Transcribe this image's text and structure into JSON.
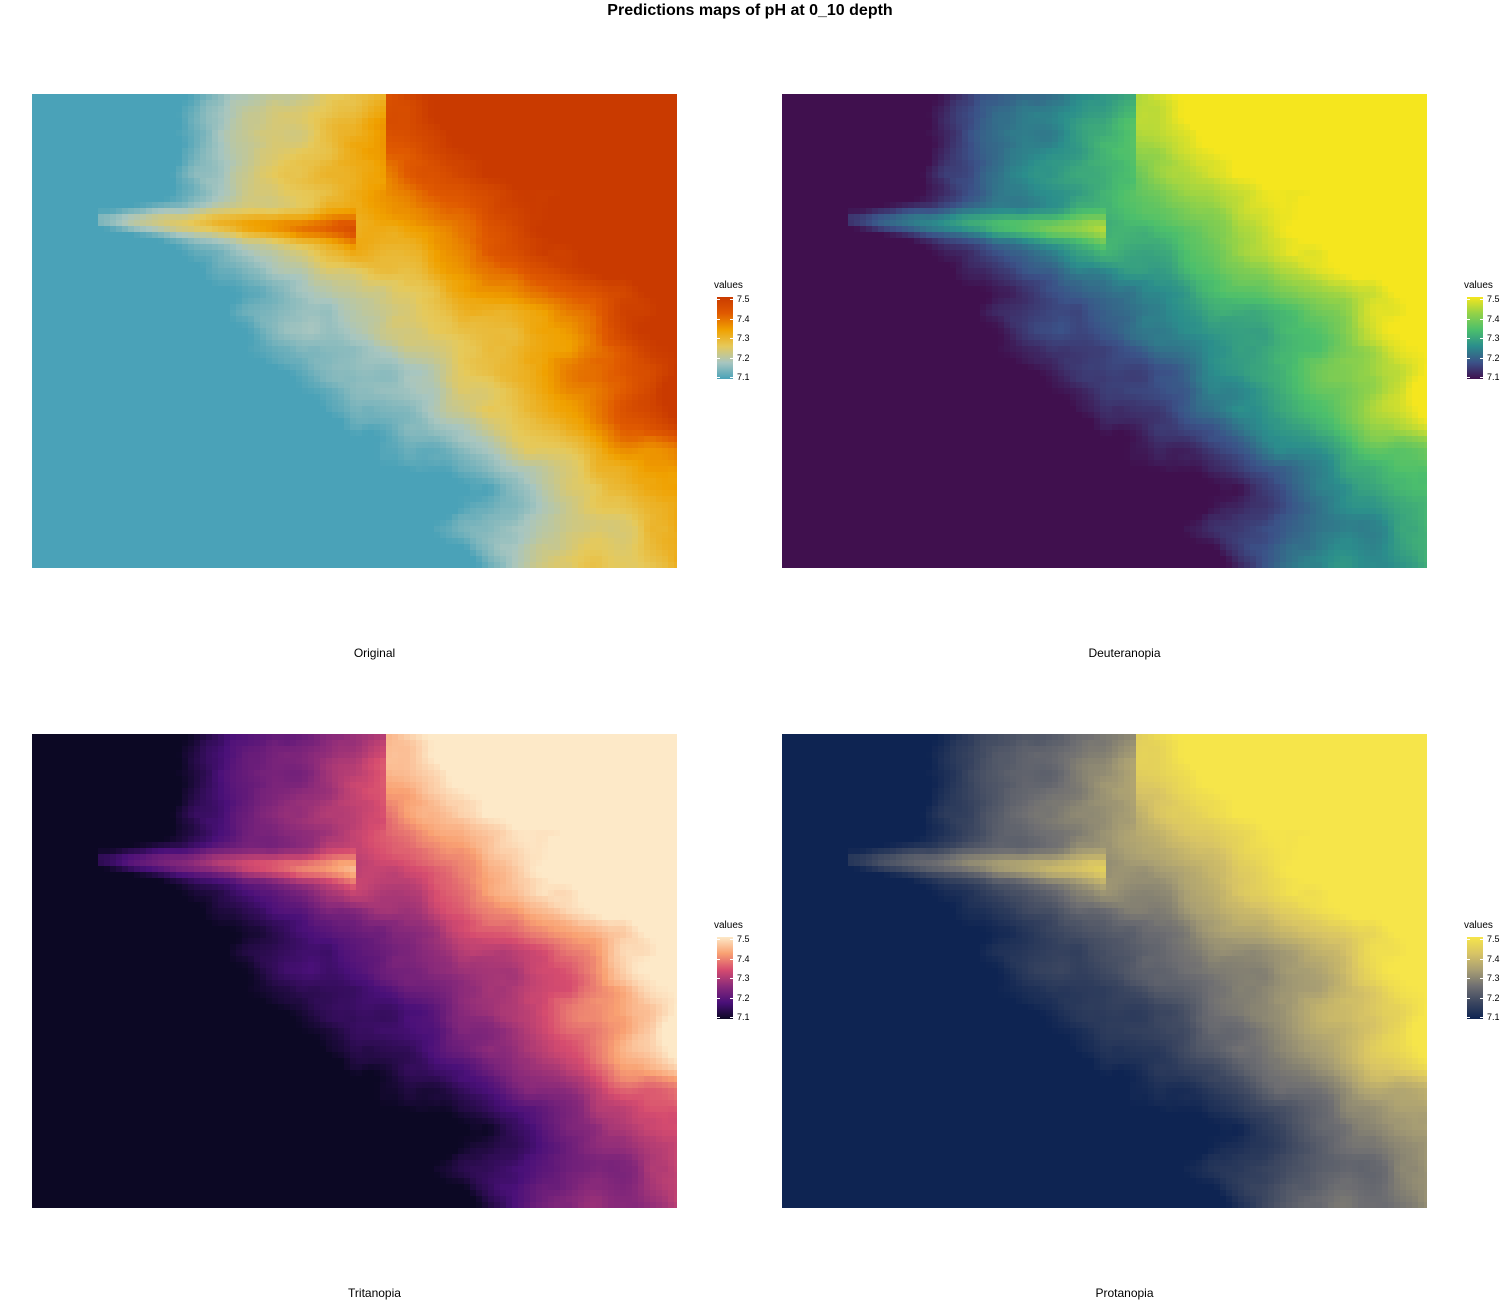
{
  "chart_data": {
    "type": "heatmap",
    "title": "Predictions maps of pH at 0_10 depth",
    "legend_title": "values",
    "legend_position": "right",
    "value_range": [
      7.1,
      7.5
    ],
    "ticks": [
      "7.5",
      "7.4",
      "7.3",
      "7.2",
      "7.1"
    ],
    "grid": false,
    "panels": [
      {
        "caption": "Original",
        "palette": [
          "#4aa2b8",
          "#a8c6c0",
          "#e6c95a",
          "#f0a100",
          "#e05a00",
          "#c93a00"
        ]
      },
      {
        "caption": "Deuteranopia",
        "palette": [
          "#40104e",
          "#3b5288",
          "#2b8e8c",
          "#4cbf6c",
          "#93d248",
          "#f5e61e"
        ]
      },
      {
        "caption": "Tritanopia",
        "palette": [
          "#0c0824",
          "#4a1079",
          "#8a2a7a",
          "#d64c6f",
          "#f9a172",
          "#fde9c8"
        ]
      },
      {
        "caption": "Protanopia",
        "palette": [
          "#0e2452",
          "#3b4660",
          "#6f6f72",
          "#a99f73",
          "#d8c465",
          "#f6e54a"
        ]
      }
    ]
  }
}
